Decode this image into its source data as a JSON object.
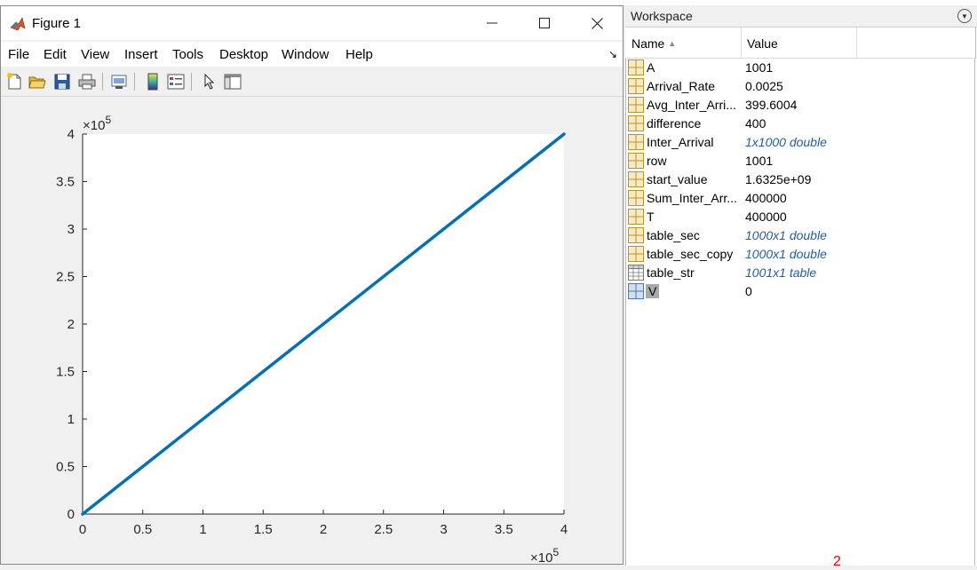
{
  "figure": {
    "title": "Figure 1",
    "window_buttons": {
      "minimize": "—",
      "maximize": "☐",
      "close": "✕"
    },
    "menu": [
      "File",
      "Edit",
      "View",
      "Insert",
      "Tools",
      "Desktop",
      "Window",
      "Help"
    ],
    "toolbar_icons": [
      "new-figure-icon",
      "open-file-icon",
      "save-icon",
      "print-icon",
      "link-plot-icon",
      "colorbar-icon",
      "legend-icon",
      "edit-plot-arrow-icon",
      "property-inspector-icon"
    ]
  },
  "chart_data": {
    "type": "line",
    "x": [
      0,
      400000
    ],
    "y": [
      0,
      400000
    ],
    "xlim": [
      0,
      400000
    ],
    "ylim": [
      0,
      400000
    ],
    "x_ticks": [
      "0",
      "0.5",
      "1",
      "1.5",
      "2",
      "2.5",
      "3",
      "3.5",
      "4"
    ],
    "y_ticks": [
      "0",
      "0.5",
      "1",
      "1.5",
      "2",
      "2.5",
      "3",
      "3.5",
      "4"
    ],
    "x_exponent_label": "×10",
    "x_exponent_power": "5",
    "y_exponent_label": "×10",
    "y_exponent_power": "5",
    "line_color": "#0072bd",
    "axes_background": "#ffffff",
    "figure_background": "#f0f0f0",
    "grid": false
  },
  "workspace": {
    "title": "Workspace",
    "columns": {
      "name": "Name",
      "sort_indicator": "▲",
      "value": "Value"
    },
    "variables": [
      {
        "name": "A",
        "value": "1001",
        "italic": false,
        "icon": "grid-variable-icon"
      },
      {
        "name": "Arrival_Rate",
        "value": "0.0025",
        "italic": false,
        "icon": "grid-variable-icon"
      },
      {
        "name": "Avg_Inter_Arri...",
        "value": "399.6004",
        "italic": false,
        "icon": "grid-variable-icon"
      },
      {
        "name": "difference",
        "value": "400",
        "italic": false,
        "icon": "grid-variable-icon"
      },
      {
        "name": "Inter_Arrival",
        "value": "1x1000 double",
        "italic": true,
        "icon": "grid-variable-icon"
      },
      {
        "name": "row",
        "value": "1001",
        "italic": false,
        "icon": "grid-variable-icon"
      },
      {
        "name": "start_value",
        "value": "1.6325e+09",
        "italic": false,
        "icon": "grid-variable-icon"
      },
      {
        "name": "Sum_Inter_Arr...",
        "value": "400000",
        "italic": false,
        "icon": "grid-variable-icon"
      },
      {
        "name": "T",
        "value": "400000",
        "italic": false,
        "icon": "grid-variable-icon"
      },
      {
        "name": "table_sec",
        "value": "1000x1 double",
        "italic": true,
        "icon": "grid-variable-icon"
      },
      {
        "name": "table_sec_copy",
        "value": "1000x1 double",
        "italic": true,
        "icon": "grid-variable-icon"
      },
      {
        "name": "table_str",
        "value": "1001x1 table",
        "italic": true,
        "icon": "table-variable-icon"
      },
      {
        "name": "V",
        "value": "0",
        "italic": false,
        "icon": "grid-variable-icon",
        "selected": true
      }
    ],
    "page_number": "2"
  }
}
